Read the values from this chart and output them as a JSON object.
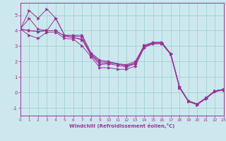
{
  "xlabel": "Windchill (Refroidissement éolien,°C)",
  "bg_color": "#cce8ee",
  "line_color": "#993399",
  "grid_color": "#99cccc",
  "xlim": [
    0,
    23
  ],
  "ylim": [
    -1.5,
    5.8
  ],
  "yticks": [
    -1,
    0,
    1,
    2,
    3,
    4,
    5
  ],
  "xticks": [
    0,
    1,
    2,
    3,
    4,
    5,
    6,
    7,
    8,
    9,
    10,
    11,
    12,
    13,
    14,
    15,
    16,
    17,
    18,
    19,
    20,
    21,
    22,
    23
  ],
  "lines": [
    [
      0,
      4.1,
      1,
      5.3,
      2,
      4.8,
      3,
      5.4,
      4,
      4.8,
      5,
      3.7,
      6,
      3.7,
      7,
      3.7,
      8,
      2.55,
      9,
      2.1,
      10,
      2.0,
      11,
      1.85,
      12,
      1.8,
      13,
      2.0,
      14,
      3.05,
      15,
      3.25,
      16,
      3.25,
      17,
      2.5,
      18,
      0.35,
      19,
      -0.55,
      20,
      -0.75,
      21,
      -0.35,
      22,
      0.1,
      23,
      0.2
    ],
    [
      0,
      4.1,
      1,
      4.8,
      2,
      4.1,
      3,
      4.0,
      4,
      4.8,
      5,
      3.7,
      6,
      3.65,
      7,
      3.6,
      8,
      2.5,
      9,
      2.0,
      10,
      1.95,
      11,
      1.85,
      12,
      1.75,
      13,
      1.9,
      14,
      3.0,
      15,
      3.2,
      16,
      3.2,
      17,
      2.5,
      18,
      0.35,
      19,
      -0.55,
      20,
      -0.75,
      21,
      -0.35,
      22,
      0.1,
      23,
      0.2
    ],
    [
      0,
      4.1,
      1,
      4.0,
      2,
      3.95,
      3,
      4.0,
      4,
      4.0,
      5,
      3.65,
      6,
      3.55,
      7,
      3.45,
      8,
      2.45,
      9,
      1.9,
      10,
      1.9,
      11,
      1.85,
      12,
      1.7,
      13,
      1.9,
      14,
      3.0,
      15,
      3.2,
      16,
      3.2,
      17,
      2.5,
      18,
      0.35,
      19,
      -0.55,
      20,
      -0.75,
      21,
      -0.35,
      22,
      0.1,
      23,
      0.2
    ],
    [
      0,
      4.1,
      1,
      4.0,
      2,
      3.95,
      3,
      4.0,
      4,
      4.0,
      5,
      3.65,
      6,
      3.55,
      7,
      3.4,
      8,
      2.4,
      9,
      1.8,
      10,
      1.85,
      11,
      1.75,
      12,
      1.65,
      13,
      1.85,
      14,
      2.9,
      15,
      3.2,
      16,
      3.2,
      17,
      2.5,
      18,
      0.35,
      19,
      -0.55,
      20,
      -0.75,
      21,
      -0.35,
      22,
      0.1,
      23,
      0.2
    ],
    [
      0,
      4.1,
      1,
      3.7,
      2,
      3.5,
      3,
      3.9,
      4,
      3.9,
      5,
      3.5,
      6,
      3.45,
      7,
      3.0,
      8,
      2.3,
      9,
      1.6,
      10,
      1.6,
      11,
      1.5,
      12,
      1.5,
      13,
      1.7,
      14,
      2.9,
      15,
      3.15,
      16,
      3.15,
      17,
      2.45,
      18,
      0.3,
      19,
      -0.6,
      20,
      -0.8,
      21,
      -0.4,
      22,
      0.05,
      23,
      0.15
    ]
  ]
}
